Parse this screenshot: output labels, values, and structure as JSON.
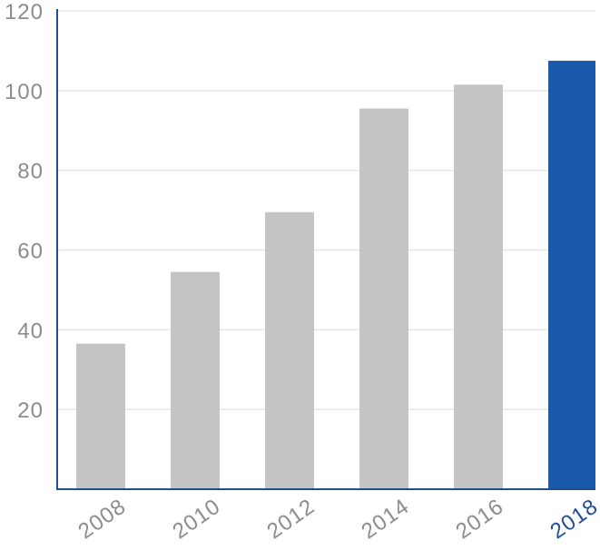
{
  "chart_data": {
    "type": "bar",
    "title": "",
    "xlabel": "",
    "ylabel": "",
    "categories": [
      "2008",
      "2010",
      "2012",
      "2014",
      "2016",
      "2018"
    ],
    "values": [
      36.5,
      54.5,
      69.5,
      95.5,
      101.5,
      107.5
    ],
    "ylim": [
      0,
      120
    ],
    "yticks": [
      20,
      40,
      60,
      80,
      100,
      120
    ],
    "ytick_labels": [
      "20",
      "40",
      "60",
      "80",
      "100",
      "120"
    ],
    "grid": true,
    "highlight_index": 5,
    "colors": {
      "bar": "#c4c4c4",
      "highlight_bar": "#1a5aad",
      "axis": "#1f4e96",
      "grid": "#e6e6e6",
      "tick_label": "#8c8c8c",
      "highlight_tick_label": "#1f4e96"
    }
  }
}
